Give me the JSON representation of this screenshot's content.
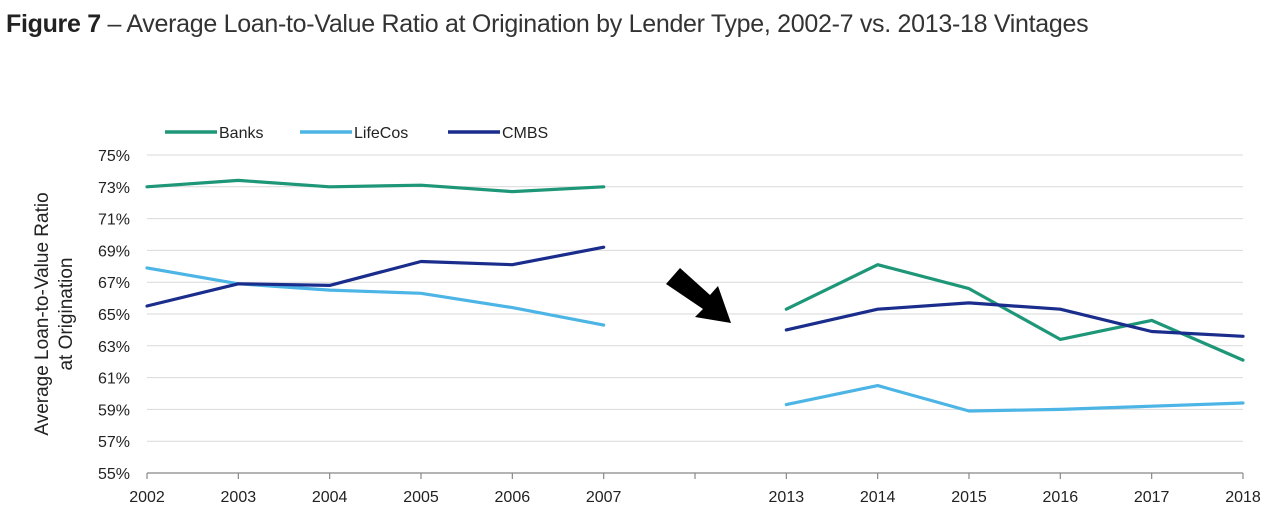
{
  "figure": {
    "label": "Figure 7",
    "separator": " – ",
    "title": "Average Loan-to-Value Ratio at Origination by Lender Type, 2002-7 vs. 2013-18 Vintages"
  },
  "chart_data": {
    "type": "line",
    "title": "Average Loan-to-Value Ratio at Origination by Lender Type, 2002-7 vs. 2013-18 Vintages",
    "xlabel": "",
    "ylabel_lines": [
      "Average Loan-to-Value Ratio",
      "at Origination"
    ],
    "ylim": [
      55,
      75
    ],
    "yticks": [
      "75%",
      "73%",
      "71%",
      "69%",
      "67%",
      "65%",
      "63%",
      "61%",
      "59%",
      "57%",
      "55%"
    ],
    "ytick_values": [
      75,
      73,
      71,
      69,
      67,
      65,
      63,
      61,
      59,
      57,
      55
    ],
    "categories": [
      "2002",
      "2003",
      "2004",
      "2005",
      "2006",
      "2007",
      "",
      "2013",
      "2014",
      "2015",
      "2016",
      "2017",
      "2018"
    ],
    "grid": true,
    "legend_position": "top-left",
    "annotation": "arrow pointing to the 2013-18 period",
    "series": [
      {
        "name": "Banks",
        "color": "#1e9678",
        "values": [
          73.0,
          73.4,
          73.0,
          73.1,
          72.7,
          73.0,
          null,
          65.3,
          68.1,
          66.6,
          63.4,
          64.6,
          62.1
        ]
      },
      {
        "name": "LifeCos",
        "color": "#4db5e6",
        "values": [
          67.9,
          66.9,
          66.5,
          66.3,
          65.4,
          64.3,
          null,
          59.3,
          60.5,
          58.9,
          59.0,
          59.2,
          59.4
        ]
      },
      {
        "name": "CMBS",
        "color": "#1a2d8c",
        "values": [
          65.5,
          66.9,
          66.8,
          68.3,
          68.1,
          69.2,
          null,
          64.0,
          65.3,
          65.7,
          65.3,
          63.9,
          63.6
        ]
      }
    ]
  }
}
